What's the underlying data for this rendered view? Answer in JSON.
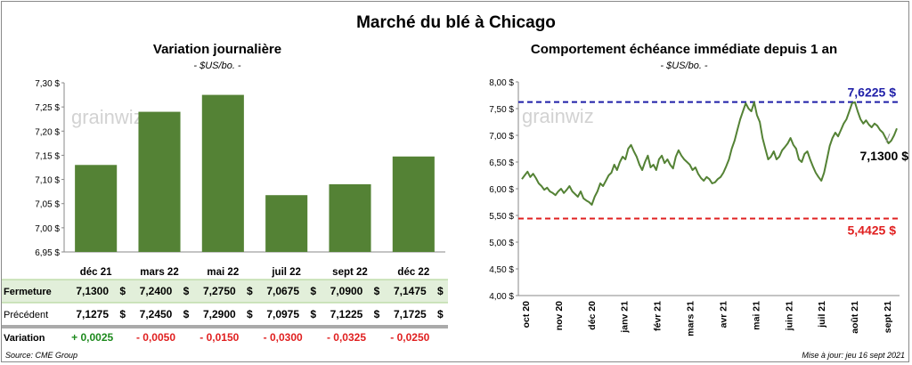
{
  "title": "Marché du blé à Chicago",
  "left_chart": {
    "title": "Variation journalière",
    "subtitle": "- $US/bo. -"
  },
  "right_chart": {
    "title": "Comportement échéance immédiate depuis 1 an",
    "subtitle": "- $US/bo. -"
  },
  "watermark": "grainwiz",
  "table": {
    "rows": [
      {
        "label": "Fermeture",
        "values": [
          "7,1300",
          "7,2400",
          "7,2750",
          "7,0675",
          "7,0900",
          "7,1475"
        ],
        "unit": "$"
      },
      {
        "label": "Précédent",
        "values": [
          "7,1275",
          "7,2450",
          "7,2900",
          "7,0975",
          "7,1225",
          "7,1725"
        ],
        "unit": "$"
      },
      {
        "label": "Variation",
        "values": [
          "+ 0,0025",
          "- 0,0050",
          "- 0,0150",
          "- 0,0300",
          "- 0,0325",
          "- 0,0250"
        ],
        "unit": ""
      }
    ]
  },
  "footer": {
    "source": "Source: CME Group",
    "updated": "Mise à jour: jeu 16 sept 2021"
  },
  "colors": {
    "bar": "#548235",
    "line": "#548235",
    "high": "#1f1fa8",
    "low": "#e02020",
    "positive": "#1e8a1e",
    "negative": "#e02020",
    "highlight_row": "#e2efda"
  },
  "chart_data": [
    {
      "type": "bar",
      "title": "Variation journalière",
      "subtitle": "- $US/bo. -",
      "categories": [
        "déc 21",
        "mars 22",
        "mai 22",
        "juil 22",
        "sept 22",
        "déc 22"
      ],
      "values": [
        7.13,
        7.24,
        7.275,
        7.0675,
        7.09,
        7.1475
      ],
      "ylim": [
        6.95,
        7.3
      ],
      "yticks": [
        6.95,
        7.0,
        7.05,
        7.1,
        7.15,
        7.2,
        7.25,
        7.3
      ],
      "ytick_labels": [
        "6,95 $",
        "7,00 $",
        "7,05 $",
        "7,10 $",
        "7,15 $",
        "7,20 $",
        "7,25 $",
        "7,30 $"
      ],
      "grid": false
    },
    {
      "type": "line",
      "title": "Comportement échéance immédiate depuis 1 an",
      "subtitle": "- $US/bo. -",
      "ylim": [
        4.0,
        8.0
      ],
      "yticks": [
        4.0,
        4.5,
        5.0,
        5.5,
        6.0,
        6.5,
        7.0,
        7.5,
        8.0
      ],
      "ytick_labels": [
        "4,00 $",
        "4,50 $",
        "5,00 $",
        "5,50 $",
        "6,00 $",
        "6,50 $",
        "7,00 $",
        "7,50 $",
        "8,00 $"
      ],
      "x_labels": [
        "oct 20",
        "nov 20",
        "déc 20",
        "janv 21",
        "févr 21",
        "mars 21",
        "avr 21",
        "mai 21",
        "juin 21",
        "juil 21",
        "août 21",
        "sept 21"
      ],
      "series": [
        {
          "values": [
            6.18,
            6.25,
            6.32,
            6.22,
            6.28,
            6.2,
            6.1,
            6.05,
            5.98,
            6.02,
            5.95,
            5.92,
            5.88,
            5.95,
            6.0,
            5.92,
            5.98,
            6.05,
            5.95,
            5.9,
            5.85,
            5.95,
            5.82,
            5.78,
            5.75,
            5.7,
            5.85,
            5.95,
            6.1,
            6.05,
            6.15,
            6.25,
            6.3,
            6.45,
            6.35,
            6.5,
            6.6,
            6.55,
            6.75,
            6.82,
            6.7,
            6.6,
            6.45,
            6.35,
            6.5,
            6.62,
            6.4,
            6.45,
            6.35,
            6.55,
            6.62,
            6.48,
            6.55,
            6.45,
            6.38,
            6.6,
            6.72,
            6.62,
            6.55,
            6.5,
            6.45,
            6.35,
            6.4,
            6.28,
            6.2,
            6.15,
            6.22,
            6.18,
            6.1,
            6.12,
            6.18,
            6.22,
            6.3,
            6.42,
            6.55,
            6.75,
            6.9,
            7.1,
            7.3,
            7.45,
            7.6,
            7.5,
            7.45,
            7.62,
            7.38,
            7.25,
            6.95,
            6.75,
            6.55,
            6.6,
            6.7,
            6.55,
            6.6,
            6.72,
            6.78,
            6.85,
            6.95,
            6.82,
            6.75,
            6.55,
            6.5,
            6.65,
            6.7,
            6.55,
            6.42,
            6.3,
            6.22,
            6.15,
            6.3,
            6.55,
            6.8,
            6.95,
            7.05,
            6.98,
            7.1,
            7.22,
            7.3,
            7.45,
            7.6,
            7.62,
            7.45,
            7.3,
            7.22,
            7.28,
            7.2,
            7.15,
            7.22,
            7.18,
            7.1,
            7.05,
            6.95,
            6.85,
            6.9,
            7.0,
            7.13
          ]
        }
      ],
      "reference_lines": [
        {
          "value": 7.6225,
          "label": "7,6225 $",
          "color": "#1f1fa8"
        },
        {
          "value": 5.4425,
          "label": "5,4425 $",
          "color": "#e02020"
        }
      ],
      "last_value_label": "7,1300 $",
      "grid": false
    }
  ]
}
